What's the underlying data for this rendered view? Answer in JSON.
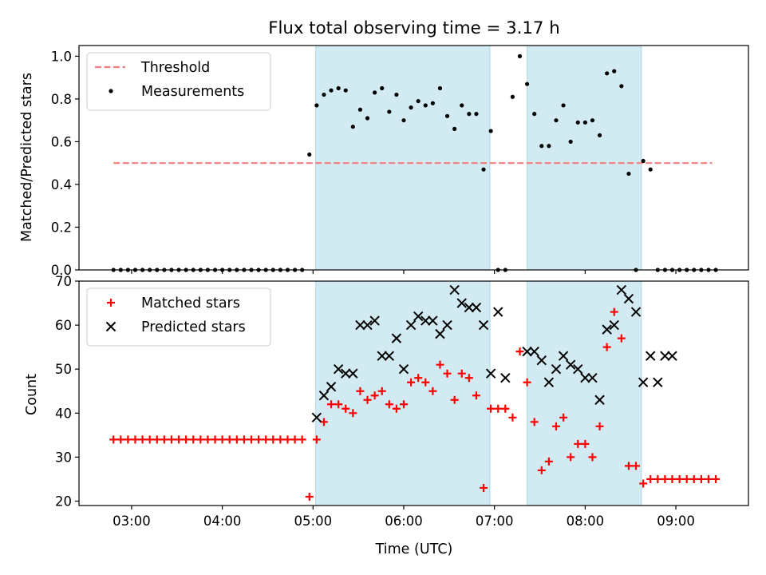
{
  "title": "Flux total observing time = 3.17 h",
  "chart_data": [
    {
      "type": "scatter",
      "ylabel": "Matched/Predicted stars",
      "xlim": [
        2.42,
        9.8
      ],
      "ylim": [
        0,
        1.05
      ],
      "yticks": [
        0.0,
        0.2,
        0.4,
        0.6,
        0.8,
        1.0
      ],
      "ytick_labels": [
        "0.0",
        "0.2",
        "0.4",
        "0.6",
        "0.8",
        "1.0"
      ],
      "shaded_regions": [
        [
          5.03,
          6.95
        ],
        [
          7.36,
          8.62
        ]
      ],
      "shade_color": "#add8e6",
      "legend_position": "upper-left",
      "threshold": {
        "name": "Threshold",
        "y": 0.5,
        "x": [
          2.8,
          9.4
        ],
        "color": "#f08080",
        "style": "dashed"
      },
      "series": [
        {
          "name": "Measurements",
          "marker": "dot",
          "color": "#000000",
          "x": [
            2.8,
            2.88,
            2.96,
            3.04,
            3.12,
            3.2,
            3.28,
            3.36,
            3.44,
            3.52,
            3.6,
            3.68,
            3.76,
            3.84,
            3.92,
            4.0,
            4.08,
            4.16,
            4.24,
            4.32,
            4.4,
            4.48,
            4.56,
            4.64,
            4.72,
            4.8,
            4.88,
            4.96,
            5.04,
            5.12,
            5.2,
            5.28,
            5.36,
            5.44,
            5.52,
            5.6,
            5.68,
            5.76,
            5.84,
            5.92,
            6.0,
            6.08,
            6.16,
            6.24,
            6.32,
            6.4,
            6.48,
            6.56,
            6.64,
            6.72,
            6.8,
            6.88,
            6.96,
            7.04,
            7.12,
            7.2,
            7.28,
            7.36,
            7.44,
            7.52,
            7.6,
            7.68,
            7.76,
            7.84,
            7.92,
            8.0,
            8.08,
            8.16,
            8.24,
            8.32,
            8.4,
            8.48,
            8.56,
            8.64,
            8.72,
            8.8,
            8.88,
            8.96,
            9.04,
            9.12,
            9.2,
            9.28,
            9.36,
            9.44
          ],
          "y": [
            0,
            0,
            0,
            0,
            0,
            0,
            0,
            0,
            0,
            0,
            0,
            0,
            0,
            0,
            0,
            0,
            0,
            0,
            0,
            0,
            0,
            0,
            0,
            0,
            0,
            0,
            0,
            0.54,
            0.77,
            0.82,
            0.84,
            0.85,
            0.84,
            0.67,
            0.75,
            0.71,
            0.83,
            0.85,
            0.74,
            0.82,
            0.7,
            0.76,
            0.79,
            0.77,
            0.78,
            0.85,
            0.72,
            0.66,
            0.77,
            0.73,
            0.73,
            0.47,
            0.65,
            0,
            0,
            0.81,
            1.0,
            0.87,
            0.73,
            0.58,
            0.58,
            0.7,
            0.77,
            0.6,
            0.69,
            0.69,
            0.7,
            0.63,
            0.92,
            0.93,
            0.86,
            0.45,
            0,
            0.51,
            0.47,
            0,
            0,
            0,
            0,
            0,
            0,
            0,
            0,
            0
          ]
        }
      ]
    },
    {
      "type": "scatter",
      "xlabel": "Time (UTC)",
      "ylabel": "Count",
      "xlim": [
        2.42,
        9.8
      ],
      "ylim": [
        19,
        70
      ],
      "yticks": [
        20,
        30,
        40,
        50,
        60,
        70
      ],
      "ytick_labels": [
        "20",
        "30",
        "40",
        "50",
        "60",
        "70"
      ],
      "xticks": [
        3,
        4,
        5,
        6,
        7,
        8,
        9
      ],
      "xtick_labels": [
        "03:00",
        "04:00",
        "05:00",
        "06:00",
        "07:00",
        "08:00",
        "09:00"
      ],
      "shaded_regions": [
        [
          5.03,
          6.95
        ],
        [
          7.36,
          8.62
        ]
      ],
      "shade_color": "#add8e6",
      "legend_position": "upper-left",
      "series": [
        {
          "name": "Matched stars",
          "marker": "plus",
          "color": "#ff0000",
          "x": [
            2.8,
            2.88,
            2.96,
            3.04,
            3.12,
            3.2,
            3.28,
            3.36,
            3.44,
            3.52,
            3.6,
            3.68,
            3.76,
            3.84,
            3.92,
            4.0,
            4.08,
            4.16,
            4.24,
            4.32,
            4.4,
            4.48,
            4.56,
            4.64,
            4.72,
            4.8,
            4.88,
            4.96,
            5.04,
            5.12,
            5.2,
            5.28,
            5.36,
            5.44,
            5.52,
            5.6,
            5.68,
            5.76,
            5.84,
            5.92,
            6.0,
            6.08,
            6.16,
            6.24,
            6.32,
            6.4,
            6.48,
            6.56,
            6.64,
            6.72,
            6.8,
            6.88,
            6.96,
            7.04,
            7.12,
            7.2,
            7.28,
            7.36,
            7.44,
            7.52,
            7.6,
            7.68,
            7.76,
            7.84,
            7.92,
            8.0,
            8.08,
            8.16,
            8.24,
            8.32,
            8.4,
            8.48,
            8.56,
            8.64,
            8.72,
            8.8,
            8.88,
            8.96,
            9.04,
            9.12,
            9.2,
            9.28,
            9.36,
            9.44
          ],
          "y": [
            34,
            34,
            34,
            34,
            34,
            34,
            34,
            34,
            34,
            34,
            34,
            34,
            34,
            34,
            34,
            34,
            34,
            34,
            34,
            34,
            34,
            34,
            34,
            34,
            34,
            34,
            34,
            21,
            34,
            38,
            42,
            42,
            41,
            40,
            45,
            43,
            44,
            45,
            42,
            41,
            42,
            47,
            48,
            47,
            45,
            51,
            49,
            43,
            49,
            48,
            44,
            23,
            41,
            41,
            41,
            39,
            54,
            47,
            38,
            27,
            29,
            37,
            39,
            30,
            33,
            33,
            30,
            37,
            55,
            63,
            57,
            28,
            28,
            24,
            25,
            25,
            25,
            25,
            25,
            25,
            25,
            25,
            25,
            25
          ]
        },
        {
          "name": "Predicted stars",
          "marker": "x",
          "color": "#000000",
          "x": [
            5.04,
            5.12,
            5.2,
            5.28,
            5.36,
            5.44,
            5.52,
            5.6,
            5.68,
            5.76,
            5.84,
            5.92,
            6.0,
            6.08,
            6.16,
            6.24,
            6.32,
            6.4,
            6.48,
            6.56,
            6.64,
            6.72,
            6.8,
            6.88,
            6.96,
            7.04,
            7.12,
            7.36,
            7.44,
            7.52,
            7.6,
            7.68,
            7.76,
            7.84,
            7.92,
            8.0,
            8.08,
            8.16,
            8.24,
            8.32,
            8.4,
            8.48,
            8.56,
            8.64,
            8.72,
            8.8,
            8.88,
            8.96
          ],
          "y": [
            39,
            44,
            46,
            50,
            49,
            49,
            60,
            60,
            61,
            53,
            53,
            57,
            50,
            60,
            62,
            61,
            61,
            58,
            60,
            68,
            65,
            64,
            64,
            60,
            49,
            63,
            48,
            54,
            54,
            52,
            47,
            50,
            53,
            51,
            50,
            48,
            48,
            43,
            59,
            60,
            68,
            66,
            63,
            47,
            53,
            47,
            53,
            53
          ]
        }
      ]
    }
  ]
}
